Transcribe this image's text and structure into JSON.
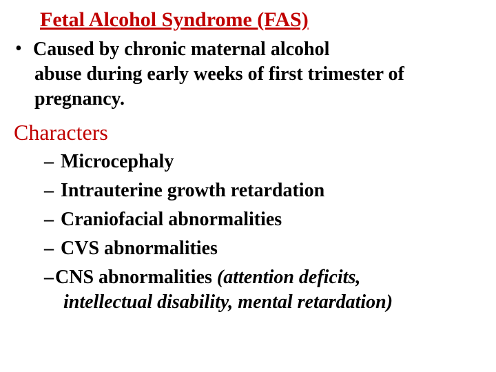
{
  "colors": {
    "title": "#c00000",
    "section": "#c00000",
    "body": "#000000",
    "background": "#ffffff"
  },
  "fonts": {
    "family": "Times New Roman",
    "title_size_pt": 30,
    "section_size_pt": 32,
    "body_size_pt": 28
  },
  "title": "Fetal Alcohol Syndrome (FAS)",
  "cause": {
    "line1": "Caused by chronic maternal alcohol",
    "line2": "abuse during early weeks of first trimester of",
    "line3": "pregnancy."
  },
  "section_header": "Characters",
  "characters": {
    "item1": "Microcephaly",
    "item2": "Intrauterine growth retardation",
    "item3": "Craniofacial abnormalities",
    "item4": "CVS abnormalities",
    "item5_prefix": "CNS abnormalities ",
    "item5_italic": "(attention deficits,",
    "item5_cont": "intellectual disability, mental retardation)"
  }
}
